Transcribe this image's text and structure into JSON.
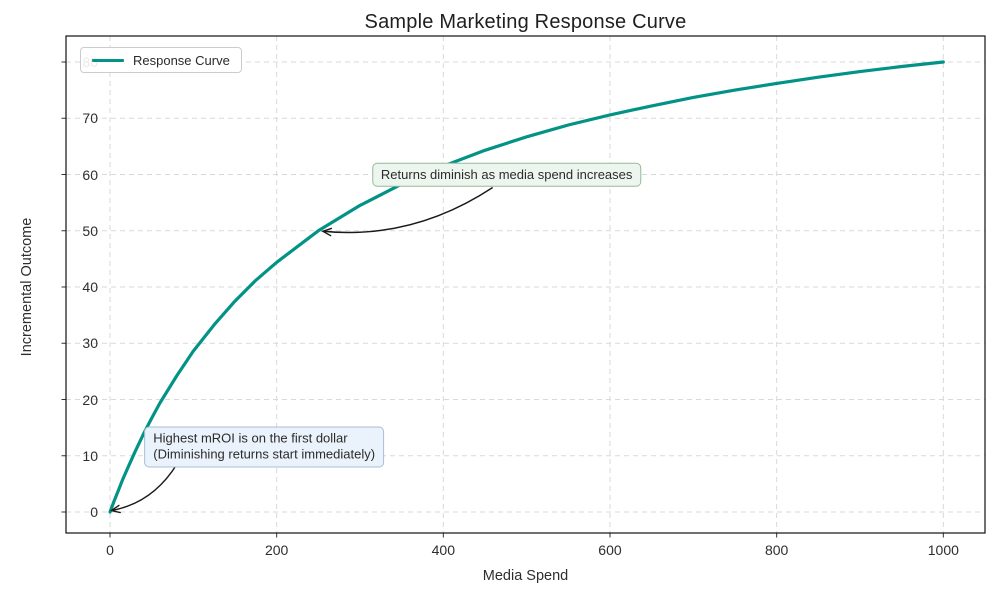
{
  "title": "Sample Marketing Response Curve",
  "legend": {
    "items": [
      {
        "label": "Response Curve",
        "color": "#029386"
      }
    ]
  },
  "chart_data": {
    "type": "line",
    "title": "Sample Marketing Response Curve",
    "xlabel": "Media Spend",
    "ylabel": "Incremental Outcome",
    "xlim": [
      -50,
      1050
    ],
    "ylim": [
      -3.7,
      84.6
    ],
    "x_ticks": [
      0,
      200,
      400,
      600,
      800,
      1000
    ],
    "y_ticks": [
      0,
      10,
      20,
      30,
      40,
      50,
      60,
      70,
      80
    ],
    "grid": "dashed",
    "legend_position": "upper left",
    "series": [
      {
        "name": "Response Curve",
        "color": "#029386",
        "x": [
          0,
          2,
          5,
          10,
          15,
          20,
          30,
          40,
          50,
          60,
          80,
          100,
          125,
          150,
          175,
          200,
          250,
          300,
          350,
          400,
          450,
          500,
          550,
          600,
          650,
          700,
          750,
          800,
          850,
          900,
          950,
          1000
        ],
        "y": [
          0,
          0.8,
          2.0,
          3.8,
          5.7,
          7.4,
          10.7,
          13.8,
          16.7,
          19.4,
          24.2,
          28.6,
          33.3,
          37.5,
          41.2,
          44.4,
          50.0,
          54.5,
          58.3,
          61.5,
          64.3,
          66.7,
          68.8,
          70.6,
          72.2,
          73.7,
          75.0,
          76.2,
          77.3,
          78.3,
          79.2,
          80.0
        ]
      }
    ],
    "annotations": [
      {
        "id": "diminishing-returns",
        "text": "Returns diminish as media spend increases",
        "target_xy": [
          250,
          50
        ],
        "text_xy": [
          476,
          60
        ],
        "box_fill": "#edf6ee",
        "box_border": "#95ba98"
      },
      {
        "id": "highest-mroi",
        "text": "Highest mROI is on the first dollar\n(Diminishing returns start immediately)",
        "target_xy": [
          0,
          0
        ],
        "text_xy": [
          185,
          11.6
        ],
        "box_fill": "#eaf2fb",
        "box_border": "#a8bfd6"
      }
    ]
  },
  "colors": {
    "curve": "#029386",
    "grid": "#d9d9d9",
    "spine": "#111111",
    "tick": "#333333",
    "arrow": "#1a1a1a",
    "text": "#2e2e2e"
  }
}
